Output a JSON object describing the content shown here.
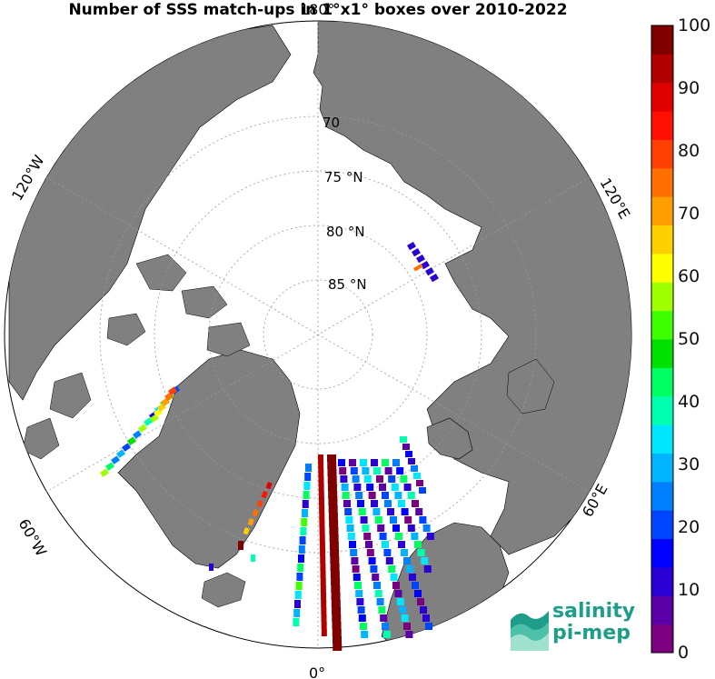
{
  "title": "Number of SSS match-ups in 1°x1° boxes over 2010-2022",
  "map": {
    "projection": "north-polar-stereographic",
    "land_color": "#808080",
    "ocean_color": "#ffffff",
    "ice_color": "#ffffff",
    "latitude_labels": [
      "70",
      "75 °N",
      "80 °N",
      "85 °N"
    ],
    "longitude_labels": {
      "top": "180°",
      "right_upper": "120°E",
      "right_lower": "60°E",
      "bottom": "0°",
      "left_upper": "120°W",
      "left_lower": "60°W"
    }
  },
  "colorbar": {
    "min": 0,
    "max": 100,
    "tick_labels": [
      "100",
      "90",
      "80",
      "70",
      "60",
      "50",
      "40",
      "30",
      "20",
      "10",
      "0"
    ],
    "colors": [
      "#7b0080",
      "#5a00a6",
      "#2a00d4",
      "#0000ff",
      "#0044ff",
      "#0080ff",
      "#00b4ff",
      "#00e6ff",
      "#00ffb0",
      "#00ff60",
      "#00e000",
      "#40ff00",
      "#a0ff00",
      "#ffff00",
      "#ffd000",
      "#ffa000",
      "#ff7000",
      "#ff4000",
      "#ff1000",
      "#e00000",
      "#b00000",
      "#800000"
    ]
  },
  "logo": {
    "line1": "salinity",
    "line2": "pi-mep"
  }
}
